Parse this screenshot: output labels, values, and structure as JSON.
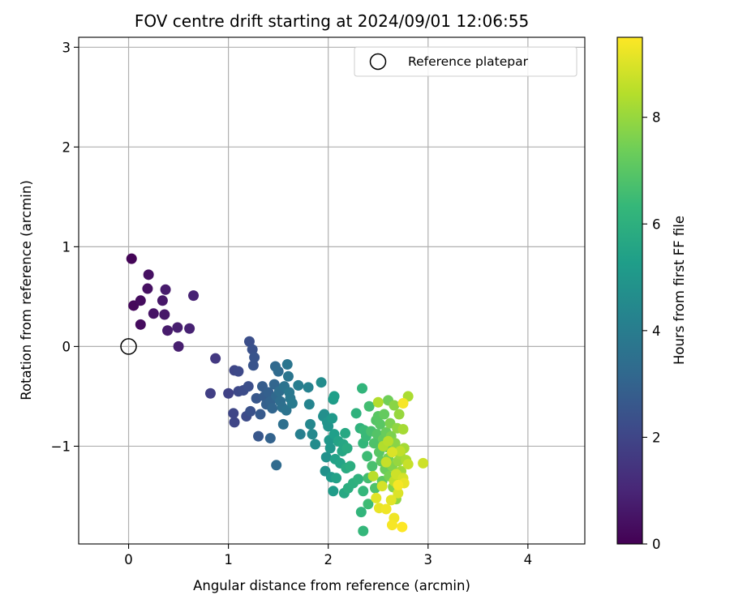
{
  "chart_data": {
    "type": "scatter",
    "title": "FOV centre drift starting at 2024/09/01 12:06:55",
    "xlabel": "Angular distance from reference (arcmin)",
    "ylabel": "Rotation from reference (arcmin)",
    "xlim": [
      -0.5,
      4.57
    ],
    "ylim": [
      -1.98,
      3.1
    ],
    "xticks": [
      0,
      1,
      2,
      3,
      4
    ],
    "xtick_labels": [
      "0",
      "1",
      "2",
      "3",
      "4"
    ],
    "yticks": [
      -1,
      0,
      1,
      2,
      3
    ],
    "ytick_labels": [
      "−1",
      "0",
      "1",
      "2",
      "3"
    ],
    "grid": true,
    "legend": {
      "placement": "top-right",
      "entries": [
        "Reference platepar"
      ]
    },
    "reference_point": {
      "x": 0,
      "y": 0,
      "label": "Reference platepar",
      "marker": "open-circle"
    },
    "colorbar": {
      "label": "Hours from first FF file",
      "colormap": "viridis",
      "range": [
        0,
        9.5
      ],
      "ticks": [
        0,
        2,
        4,
        6,
        8
      ],
      "tick_labels": [
        "0",
        "2",
        "4",
        "6",
        "8"
      ]
    },
    "points": [
      {
        "x": 0.03,
        "y": 0.88,
        "h": 0.1
      },
      {
        "x": 0.05,
        "y": 0.41,
        "h": 0.2
      },
      {
        "x": 0.12,
        "y": 0.46,
        "h": 0.3
      },
      {
        "x": 0.12,
        "y": 0.22,
        "h": 0.3
      },
      {
        "x": 0.19,
        "y": 0.58,
        "h": 0.4
      },
      {
        "x": 0.2,
        "y": 0.72,
        "h": 0.4
      },
      {
        "x": 0.25,
        "y": 0.33,
        "h": 0.5
      },
      {
        "x": 0.34,
        "y": 0.46,
        "h": 0.6
      },
      {
        "x": 0.36,
        "y": 0.32,
        "h": 0.6
      },
      {
        "x": 0.37,
        "y": 0.57,
        "h": 0.7
      },
      {
        "x": 0.39,
        "y": 0.16,
        "h": 0.7
      },
      {
        "x": 0.49,
        "y": 0.19,
        "h": 0.8
      },
      {
        "x": 0.5,
        "y": 0.0,
        "h": 0.8
      },
      {
        "x": 0.61,
        "y": 0.18,
        "h": 0.9
      },
      {
        "x": 0.65,
        "y": 0.51,
        "h": 0.9
      },
      {
        "x": 0.87,
        "y": -0.12,
        "h": 1.6
      },
      {
        "x": 0.82,
        "y": -0.47,
        "h": 1.8
      },
      {
        "x": 1.0,
        "y": -0.47,
        "h": 1.9
      },
      {
        "x": 1.05,
        "y": -0.67,
        "h": 2.0
      },
      {
        "x": 1.06,
        "y": -0.76,
        "h": 2.0
      },
      {
        "x": 1.06,
        "y": -0.24,
        "h": 2.0
      },
      {
        "x": 1.1,
        "y": -0.25,
        "h": 2.1
      },
      {
        "x": 1.1,
        "y": -0.45,
        "h": 2.1
      },
      {
        "x": 1.15,
        "y": -0.44,
        "h": 2.2
      },
      {
        "x": 1.18,
        "y": -0.7,
        "h": 2.2
      },
      {
        "x": 1.2,
        "y": -0.4,
        "h": 2.3
      },
      {
        "x": 1.21,
        "y": 0.05,
        "h": 2.3
      },
      {
        "x": 1.22,
        "y": -0.65,
        "h": 2.4
      },
      {
        "x": 1.24,
        "y": -0.03,
        "h": 2.4
      },
      {
        "x": 1.25,
        "y": -0.19,
        "h": 2.5
      },
      {
        "x": 1.26,
        "y": -0.11,
        "h": 2.5
      },
      {
        "x": 1.28,
        "y": -0.52,
        "h": 2.6
      },
      {
        "x": 1.3,
        "y": -0.9,
        "h": 2.6
      },
      {
        "x": 1.32,
        "y": -0.68,
        "h": 2.7
      },
      {
        "x": 1.34,
        "y": -0.4,
        "h": 2.8
      },
      {
        "x": 1.36,
        "y": -0.5,
        "h": 2.8
      },
      {
        "x": 1.38,
        "y": -0.58,
        "h": 2.9
      },
      {
        "x": 1.4,
        "y": -0.46,
        "h": 2.9
      },
      {
        "x": 1.42,
        "y": -0.55,
        "h": 3.0
      },
      {
        "x": 1.42,
        "y": -0.92,
        "h": 3.0
      },
      {
        "x": 1.44,
        "y": -0.62,
        "h": 3.1
      },
      {
        "x": 1.46,
        "y": -0.38,
        "h": 3.1
      },
      {
        "x": 1.47,
        "y": -0.2,
        "h": 3.2
      },
      {
        "x": 1.48,
        "y": -0.5,
        "h": 3.2
      },
      {
        "x": 1.48,
        "y": -1.19,
        "h": 3.3
      },
      {
        "x": 1.5,
        "y": -0.25,
        "h": 3.3
      },
      {
        "x": 1.51,
        "y": -0.45,
        "h": 3.4
      },
      {
        "x": 1.52,
        "y": -0.55,
        "h": 3.4
      },
      {
        "x": 1.54,
        "y": -0.61,
        "h": 3.5
      },
      {
        "x": 1.55,
        "y": -0.78,
        "h": 3.5
      },
      {
        "x": 1.56,
        "y": -0.4,
        "h": 3.6
      },
      {
        "x": 1.58,
        "y": -0.64,
        "h": 3.6
      },
      {
        "x": 1.59,
        "y": -0.18,
        "h": 3.7
      },
      {
        "x": 1.6,
        "y": -0.3,
        "h": 3.7
      },
      {
        "x": 1.61,
        "y": -0.46,
        "h": 3.8
      },
      {
        "x": 1.62,
        "y": -0.52,
        "h": 3.8
      },
      {
        "x": 1.64,
        "y": -0.57,
        "h": 3.9
      },
      {
        "x": 1.7,
        "y": -0.39,
        "h": 4.0
      },
      {
        "x": 1.72,
        "y": -0.88,
        "h": 4.1
      },
      {
        "x": 1.8,
        "y": -0.41,
        "h": 4.2
      },
      {
        "x": 1.81,
        "y": -0.58,
        "h": 4.3
      },
      {
        "x": 1.82,
        "y": -0.78,
        "h": 4.4
      },
      {
        "x": 1.84,
        "y": -0.88,
        "h": 4.5
      },
      {
        "x": 1.87,
        "y": -0.98,
        "h": 4.6
      },
      {
        "x": 1.93,
        "y": -0.36,
        "h": 4.6
      },
      {
        "x": 1.95,
        "y": -0.7,
        "h": 4.7
      },
      {
        "x": 1.96,
        "y": -0.68,
        "h": 4.7
      },
      {
        "x": 1.98,
        "y": -1.11,
        "h": 4.8
      },
      {
        "x": 1.97,
        "y": -1.25,
        "h": 4.8
      },
      {
        "x": 1.99,
        "y": -0.76,
        "h": 4.9
      },
      {
        "x": 2.0,
        "y": -0.8,
        "h": 4.9
      },
      {
        "x": 2.01,
        "y": -0.94,
        "h": 5.0
      },
      {
        "x": 2.02,
        "y": -1.02,
        "h": 5.0
      },
      {
        "x": 2.03,
        "y": -1.31,
        "h": 5.1
      },
      {
        "x": 2.04,
        "y": -0.72,
        "h": 5.1
      },
      {
        "x": 2.05,
        "y": -0.53,
        "h": 5.2
      },
      {
        "x": 2.05,
        "y": -1.45,
        "h": 5.2
      },
      {
        "x": 2.06,
        "y": -0.88,
        "h": 5.3
      },
      {
        "x": 2.06,
        "y": -0.5,
        "h": 5.3
      },
      {
        "x": 2.07,
        "y": -1.13,
        "h": 5.4
      },
      {
        "x": 2.08,
        "y": -1.32,
        "h": 5.4
      },
      {
        "x": 2.1,
        "y": -0.95,
        "h": 5.5
      },
      {
        "x": 2.12,
        "y": -1.17,
        "h": 5.5
      },
      {
        "x": 2.14,
        "y": -1.05,
        "h": 5.6
      },
      {
        "x": 2.15,
        "y": -0.98,
        "h": 5.6
      },
      {
        "x": 2.16,
        "y": -1.47,
        "h": 5.7
      },
      {
        "x": 2.17,
        "y": -0.87,
        "h": 5.7
      },
      {
        "x": 2.18,
        "y": -1.22,
        "h": 5.8
      },
      {
        "x": 2.19,
        "y": -1.02,
        "h": 5.8
      },
      {
        "x": 2.2,
        "y": -1.42,
        "h": 5.9
      },
      {
        "x": 2.22,
        "y": -1.2,
        "h": 5.9
      },
      {
        "x": 2.25,
        "y": -1.37,
        "h": 6.0
      },
      {
        "x": 2.28,
        "y": -0.67,
        "h": 6.1
      },
      {
        "x": 2.3,
        "y": -1.33,
        "h": 6.1
      },
      {
        "x": 2.32,
        "y": -0.82,
        "h": 6.1
      },
      {
        "x": 2.33,
        "y": -1.66,
        "h": 6.2
      },
      {
        "x": 2.34,
        "y": -0.42,
        "h": 6.2
      },
      {
        "x": 2.35,
        "y": -0.97,
        "h": 6.3
      },
      {
        "x": 2.35,
        "y": -1.45,
        "h": 6.3
      },
      {
        "x": 2.35,
        "y": -1.85,
        "h": 6.3
      },
      {
        "x": 2.36,
        "y": -0.84,
        "h": 6.4
      },
      {
        "x": 2.38,
        "y": -0.9,
        "h": 6.4
      },
      {
        "x": 2.39,
        "y": -1.1,
        "h": 6.5
      },
      {
        "x": 2.4,
        "y": -1.58,
        "h": 6.5
      },
      {
        "x": 2.4,
        "y": -1.32,
        "h": 6.6
      },
      {
        "x": 2.41,
        "y": -0.6,
        "h": 6.6
      },
      {
        "x": 2.43,
        "y": -0.85,
        "h": 6.7
      },
      {
        "x": 2.44,
        "y": -1.2,
        "h": 6.7
      },
      {
        "x": 2.46,
        "y": -0.97,
        "h": 6.8
      },
      {
        "x": 2.47,
        "y": -1.42,
        "h": 6.8
      },
      {
        "x": 2.48,
        "y": -0.74,
        "h": 6.9
      },
      {
        "x": 2.49,
        "y": -0.88,
        "h": 6.9
      },
      {
        "x": 2.5,
        "y": -0.7,
        "h": 7.0
      },
      {
        "x": 2.51,
        "y": -1.06,
        "h": 7.0
      },
      {
        "x": 2.52,
        "y": -0.78,
        "h": 7.0
      },
      {
        "x": 2.53,
        "y": -1.15,
        "h": 7.1
      },
      {
        "x": 2.54,
        "y": -1.35,
        "h": 7.1
      },
      {
        "x": 2.55,
        "y": -0.93,
        "h": 7.2
      },
      {
        "x": 2.56,
        "y": -0.68,
        "h": 7.2
      },
      {
        "x": 2.57,
        "y": -1.23,
        "h": 7.3
      },
      {
        "x": 2.58,
        "y": -0.86,
        "h": 7.3
      },
      {
        "x": 2.59,
        "y": -1.01,
        "h": 7.4
      },
      {
        "x": 2.6,
        "y": -0.54,
        "h": 7.4
      },
      {
        "x": 2.6,
        "y": -1.12,
        "h": 7.5
      },
      {
        "x": 2.61,
        "y": -1.3,
        "h": 7.5
      },
      {
        "x": 2.62,
        "y": -0.77,
        "h": 7.6
      },
      {
        "x": 2.63,
        "y": -0.9,
        "h": 7.6
      },
      {
        "x": 2.64,
        "y": -1.2,
        "h": 7.7
      },
      {
        "x": 2.65,
        "y": -1.41,
        "h": 7.7
      },
      {
        "x": 2.66,
        "y": -0.59,
        "h": 7.8
      },
      {
        "x": 2.67,
        "y": -0.97,
        "h": 7.8
      },
      {
        "x": 2.68,
        "y": -1.53,
        "h": 7.9
      },
      {
        "x": 2.69,
        "y": -0.82,
        "h": 7.9
      },
      {
        "x": 2.7,
        "y": -1.15,
        "h": 8.0
      },
      {
        "x": 2.71,
        "y": -0.68,
        "h": 8.0
      },
      {
        "x": 2.72,
        "y": -1.08,
        "h": 8.1
      },
      {
        "x": 2.73,
        "y": -1.25,
        "h": 8.1
      },
      {
        "x": 2.75,
        "y": -0.83,
        "h": 8.2
      },
      {
        "x": 2.76,
        "y": -1.02,
        "h": 8.2
      },
      {
        "x": 2.78,
        "y": -1.14,
        "h": 8.3
      },
      {
        "x": 2.8,
        "y": -0.5,
        "h": 8.3
      },
      {
        "x": 2.5,
        "y": -0.56,
        "h": 8.4
      },
      {
        "x": 2.55,
        "y": -1.0,
        "h": 8.4
      },
      {
        "x": 2.45,
        "y": -1.3,
        "h": 8.5
      },
      {
        "x": 2.6,
        "y": -0.95,
        "h": 8.5
      },
      {
        "x": 2.66,
        "y": -1.35,
        "h": 8.6
      },
      {
        "x": 2.72,
        "y": -1.05,
        "h": 8.6
      },
      {
        "x": 2.58,
        "y": -1.16,
        "h": 8.7
      },
      {
        "x": 2.8,
        "y": -1.18,
        "h": 8.7
      },
      {
        "x": 2.95,
        "y": -1.17,
        "h": 8.8
      },
      {
        "x": 2.68,
        "y": -1.28,
        "h": 8.8
      },
      {
        "x": 2.54,
        "y": -1.4,
        "h": 8.9
      },
      {
        "x": 2.75,
        "y": -1.32,
        "h": 8.9
      },
      {
        "x": 2.64,
        "y": -1.06,
        "h": 9.0
      },
      {
        "x": 2.7,
        "y": -1.47,
        "h": 9.0
      },
      {
        "x": 2.48,
        "y": -1.52,
        "h": 9.1
      },
      {
        "x": 2.63,
        "y": -1.54,
        "h": 9.1
      },
      {
        "x": 2.76,
        "y": -1.37,
        "h": 9.2
      },
      {
        "x": 2.51,
        "y": -1.62,
        "h": 9.2
      },
      {
        "x": 2.58,
        "y": -1.63,
        "h": 9.3
      },
      {
        "x": 2.66,
        "y": -1.72,
        "h": 9.3
      },
      {
        "x": 2.75,
        "y": -0.57,
        "h": 9.4
      },
      {
        "x": 2.64,
        "y": -1.79,
        "h": 9.4
      },
      {
        "x": 2.7,
        "y": -1.39,
        "h": 9.4
      },
      {
        "x": 2.74,
        "y": -1.81,
        "h": 9.5
      }
    ]
  },
  "colors": {
    "viridis_stops": [
      "#440154",
      "#482878",
      "#3e4989",
      "#31688e",
      "#26828e",
      "#1f9e89",
      "#35b779",
      "#6ece58",
      "#b5de2b",
      "#fde725"
    ],
    "axes": "#000000",
    "grid": "#b0b0b0",
    "background": "#ffffff"
  }
}
